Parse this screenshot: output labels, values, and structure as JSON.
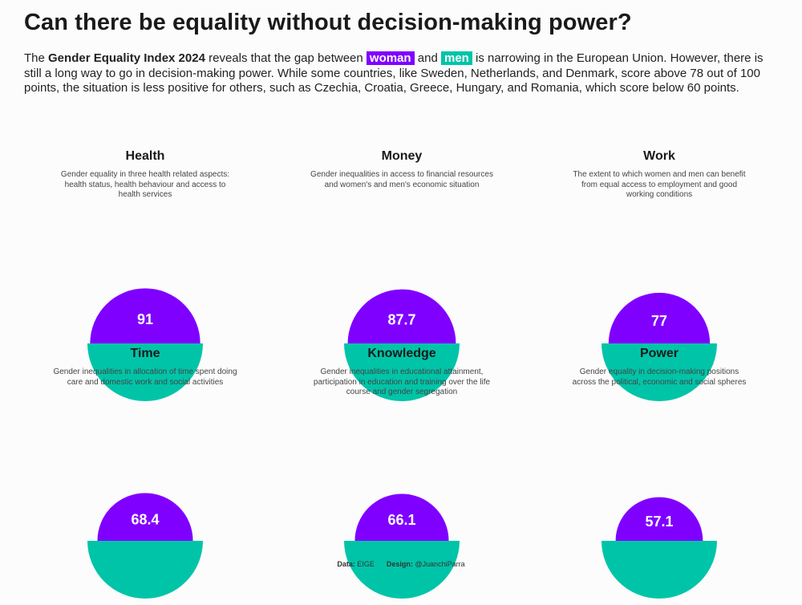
{
  "title": "Can there be equality without decision-making power?",
  "subtitle": {
    "p1": "The ",
    "index_name": "Gender Equality Index 2024",
    "p2": " reveals that the gap between ",
    "women_label": "woman",
    "p3": " and ",
    "men_label": "men",
    "p4": " is narrowing in the European Union. However, there is still a long way to go in decision-making power. While some countries, like Sweden, Netherlands, and Denmark, score above 78 out of 100 points, the situation is less positive for others, such as Czechia, Croatia, Greece, Hungary, and Romania, which score below 60 points."
  },
  "colors": {
    "women": "#8000ff",
    "men": "#00c4a8",
    "value_text": "#ffffff"
  },
  "chart_data": {
    "type": "semicircle-comparison",
    "scale_max": 100,
    "series": [
      {
        "key": "women",
        "label": "woman",
        "color": "#8000ff"
      },
      {
        "key": "men",
        "label": "men",
        "color": "#00c4a8"
      }
    ],
    "domains": [
      {
        "name": "Health",
        "description": "Gender equality in three health related aspects: health status, health behaviour and access to health services",
        "value": 91
      },
      {
        "name": "Money",
        "description": "Gender inequalities in access to financial resources and women's and men's economic situation",
        "value": 87.7
      },
      {
        "name": "Work",
        "description": "The extent to which women and men can benefit from equal access to employment and good working conditions",
        "value": 77
      },
      {
        "name": "Time",
        "description": "Gender inequalities in allocation of time spent doing care and domestic work and social activities",
        "value": 68.4
      },
      {
        "name": "Knowledge",
        "description": "Gender inequalities in educational attainment, participation in education and training over the life course and gender segregation",
        "value": 66.1
      },
      {
        "name": "Power",
        "description": "Gender equality in decision-making positions across the political, economic and social spheres",
        "value": 57.1
      }
    ]
  },
  "credits": {
    "data_label": "Data:",
    "data_value": "EIGE",
    "design_label": "Design:",
    "design_value": "@JuanchiParra"
  }
}
